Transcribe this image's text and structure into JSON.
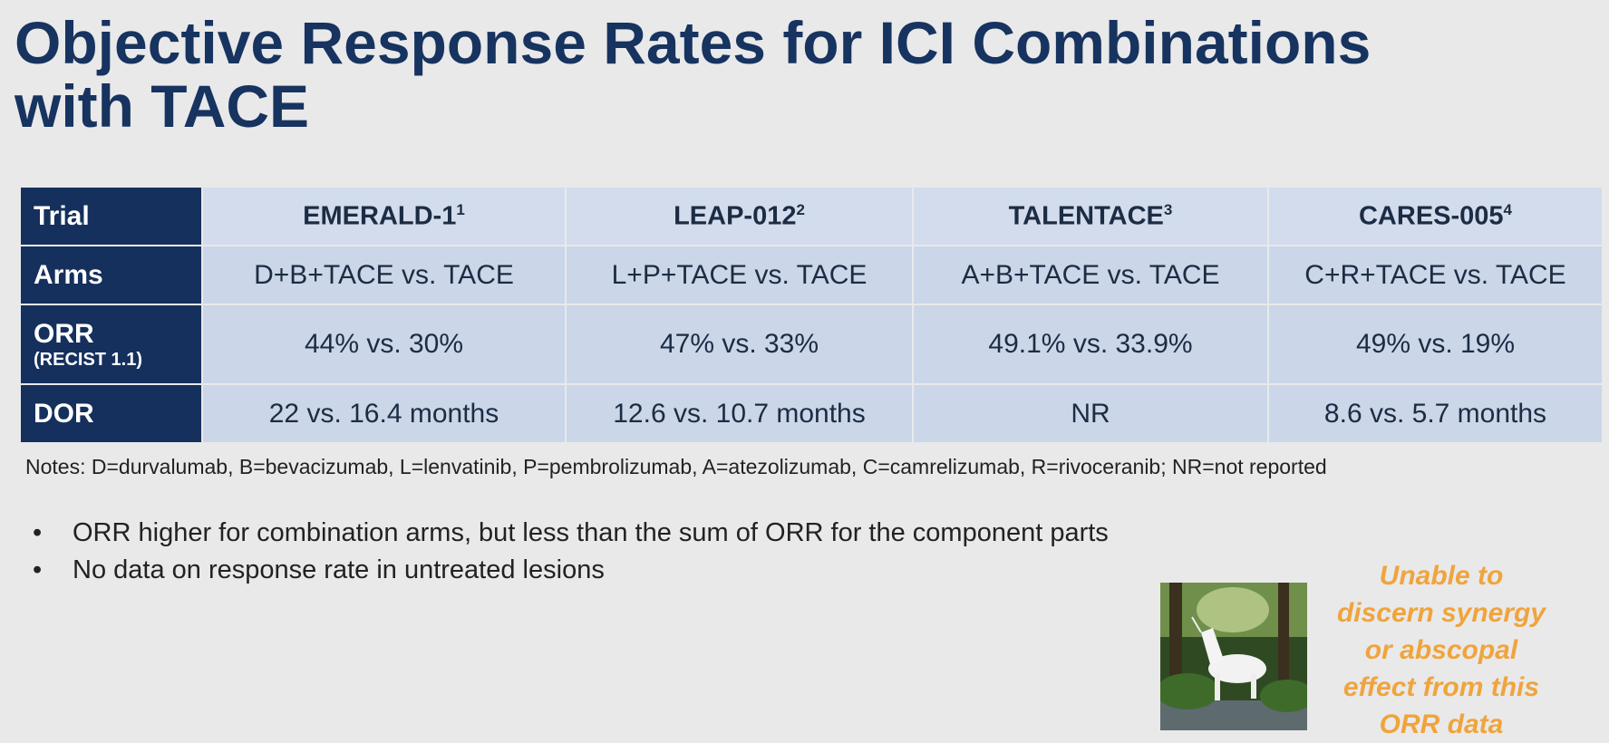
{
  "title": "Objective Response Rates for ICI Combinations with TACE",
  "table": {
    "header": [
      "Trial",
      {
        "text": "EMERALD-1",
        "ref": "1"
      },
      {
        "text": "LEAP-012",
        "ref": "2"
      },
      {
        "text": "TALENTACE",
        "ref": "3"
      },
      {
        "text": "CARES-005",
        "ref": "4"
      }
    ],
    "rows": [
      [
        "Arms",
        "D+B+TACE vs. TACE",
        "L+P+TACE vs. TACE",
        "A+B+TACE vs. TACE",
        "C+R+TACE vs. TACE"
      ],
      [
        {
          "text": "ORR",
          "sub": "(RECIST 1.1)"
        },
        "44% vs. 30%",
        "47% vs. 33%",
        "49.1% vs. 33.9%",
        "49% vs. 19%"
      ],
      [
        "DOR",
        "22 vs. 16.4 months",
        "12.6 vs. 10.7 months",
        "NR",
        "8.6 vs. 5.7 months"
      ]
    ]
  },
  "notes": "Notes: D=durvalumab, B=bevacizumab, L=lenvatinib, P=pembrolizumab, A=atezolizumab, C=camrelizumab, R=rivoceranib; NR=not reported",
  "bullets": [
    "ORR higher for combination arms, but less than the sum of ORR for the component parts",
    "No data on response rate in untreated lesions"
  ],
  "callout": [
    "Unable to",
    "discern synergy",
    "or abscopal",
    "effect from this",
    "ORR data"
  ]
}
